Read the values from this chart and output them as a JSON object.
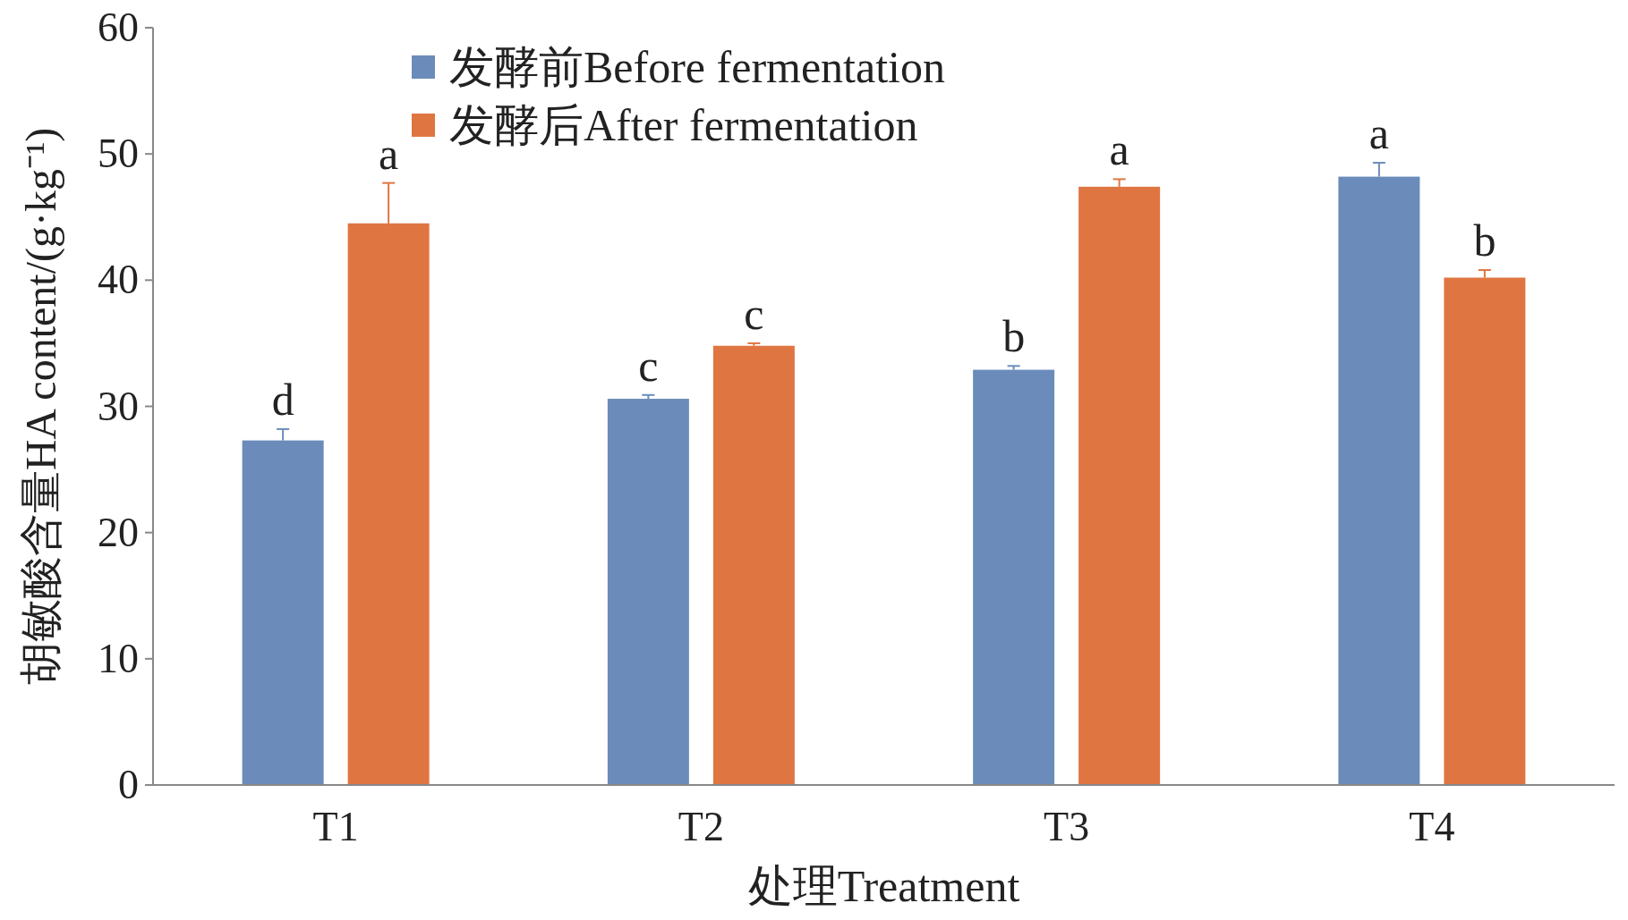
{
  "chart_data": {
    "type": "bar",
    "xlabel": "处理Treatment",
    "ylabel": "胡敏酸含量HA content/(g·kg⁻¹)",
    "categories": [
      "T1",
      "T2",
      "T3",
      "T4"
    ],
    "series": [
      {
        "name": "发酵前Before fermentation",
        "color": "#6b8cba",
        "values": [
          27.3,
          30.6,
          32.9,
          48.2
        ],
        "errors": [
          0.9,
          0.3,
          0.3,
          1.1
        ]
      },
      {
        "name": "发酵后After fermentation",
        "color": "#df7642",
        "values": [
          44.5,
          34.8,
          47.4,
          40.2
        ],
        "errors": [
          3.2,
          0.2,
          0.6,
          0.6
        ]
      }
    ],
    "ylim": [
      0,
      60
    ],
    "yticks": [
      0,
      10,
      20,
      30,
      40,
      50,
      60
    ],
    "legend": "top",
    "grid": false,
    "annotations": [
      "d",
      "a",
      "c",
      "c",
      "b",
      "a",
      "a",
      "b"
    ]
  }
}
